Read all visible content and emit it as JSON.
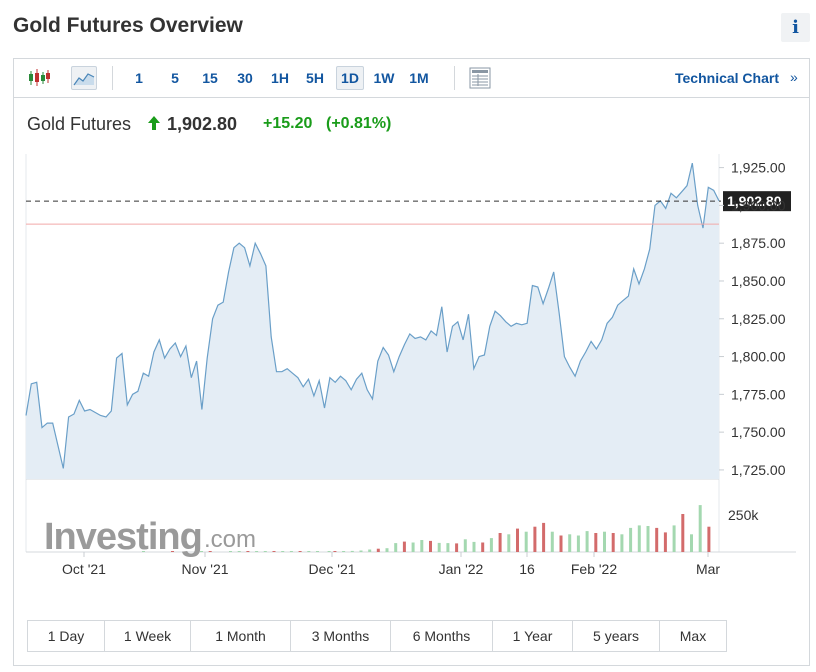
{
  "page": {
    "title": "Gold Futures Overview",
    "info_label": "i"
  },
  "toolbar": {
    "chart_types": [
      "candlestick-icon",
      "area-chart-icon"
    ],
    "intervals": [
      "1",
      "5",
      "15",
      "30",
      "1H",
      "5H",
      "1D",
      "1W",
      "1M"
    ],
    "active_interval": "1D",
    "table_icon": "table-icon",
    "technical_link": "Technical Chart",
    "technical_arrow": "»"
  },
  "quote": {
    "name": "Gold Futures",
    "price": "1,902.80",
    "change": "+15.20",
    "change_pct": "(+0.81%)",
    "direction": "up"
  },
  "chart_data": {
    "type": "area",
    "x_ticks": [
      "Oct '21",
      "Nov '21",
      "Dec '21",
      "Jan '22",
      "16",
      "Feb '22",
      "Mar"
    ],
    "y_ticks": [
      "1,925.00",
      "1,900.00",
      "1,875.00",
      "1,850.00",
      "1,825.00",
      "1,800.00",
      "1,775.00",
      "1,750.00",
      "1,725.00"
    ],
    "ylim": [
      1719,
      1934
    ],
    "last_price_label": "1,902.80",
    "last_price": 1902.8,
    "previous_close": 1887.6,
    "series": [
      {
        "values": [
          1761,
          1782,
          1783,
          1753,
          1756,
          1756,
          1741,
          1726,
          1760,
          1762,
          1771,
          1764,
          1765,
          1763,
          1761,
          1760,
          1764,
          1799,
          1802,
          1768,
          1775,
          1777,
          1789,
          1787,
          1803,
          1811,
          1799,
          1805,
          1809,
          1800,
          1807,
          1786,
          1797,
          1765,
          1799,
          1825,
          1834,
          1836,
          1856,
          1872,
          1875,
          1872,
          1860,
          1875,
          1868,
          1860,
          1813,
          1790,
          1790,
          1792,
          1789,
          1786,
          1780,
          1785,
          1774,
          1784,
          1766,
          1786,
          1783,
          1787,
          1784,
          1778,
          1785,
          1789,
          1778,
          1772,
          1797,
          1806,
          1801,
          1790,
          1800,
          1808,
          1815,
          1812,
          1813,
          1811,
          1817,
          1814,
          1833,
          1803,
          1820,
          1823,
          1811,
          1828,
          1792,
          1800,
          1801,
          1820,
          1830,
          1827,
          1823,
          1820,
          1822,
          1821,
          1822,
          1847,
          1846,
          1835,
          1845,
          1856,
          1829,
          1800,
          1793,
          1787,
          1797,
          1803,
          1810,
          1805,
          1811,
          1822,
          1826,
          1834,
          1837,
          1840,
          1858,
          1848,
          1858,
          1871,
          1900,
          1903,
          1898,
          1908,
          1905,
          1909,
          1913,
          1928,
          1900,
          1885,
          1912,
          1910,
          1903
        ]
      }
    ],
    "volume_ticks": [
      "250k"
    ],
    "volume_max": 300,
    "volume": [
      {
        "i": 40,
        "v": 3,
        "d": "up"
      },
      {
        "i": 50,
        "v": 2,
        "d": "down"
      },
      {
        "i": 60,
        "v": 3,
        "d": "up"
      },
      {
        "i": 63,
        "v": 3,
        "d": "down"
      },
      {
        "i": 70,
        "v": 3,
        "d": "up"
      },
      {
        "i": 73,
        "v": 4,
        "d": "up"
      },
      {
        "i": 76,
        "v": 3,
        "d": "down"
      },
      {
        "i": 79,
        "v": 4,
        "d": "up"
      },
      {
        "i": 82,
        "v": 3,
        "d": "up"
      },
      {
        "i": 85,
        "v": 4,
        "d": "down"
      },
      {
        "i": 88,
        "v": 5,
        "d": "up"
      },
      {
        "i": 91,
        "v": 4,
        "d": "up"
      },
      {
        "i": 94,
        "v": 6,
        "d": "down"
      },
      {
        "i": 97,
        "v": 5,
        "d": "up"
      },
      {
        "i": 100,
        "v": 7,
        "d": "up"
      },
      {
        "i": 104,
        "v": 4,
        "d": "up"
      },
      {
        "i": 106,
        "v": 8,
        "d": "down"
      },
      {
        "i": 109,
        "v": 6,
        "d": "up"
      },
      {
        "i": 112,
        "v": 9,
        "d": "up"
      },
      {
        "i": 115,
        "v": 12,
        "d": "up"
      },
      {
        "i": 118,
        "v": 20,
        "d": "up"
      },
      {
        "i": 121,
        "v": 26,
        "d": "down"
      },
      {
        "i": 124,
        "v": 30,
        "d": "up"
      },
      {
        "i": 127,
        "v": 70,
        "d": "up"
      },
      {
        "i": 130,
        "v": 82,
        "d": "down"
      },
      {
        "i": 133,
        "v": 75,
        "d": "up"
      },
      {
        "i": 136,
        "v": 95,
        "d": "up"
      },
      {
        "i": 139,
        "v": 88,
        "d": "down"
      },
      {
        "i": 142,
        "v": 72,
        "d": "up"
      },
      {
        "i": 145,
        "v": 70,
        "d": "up"
      },
      {
        "i": 148,
        "v": 68,
        "d": "down"
      },
      {
        "i": 151,
        "v": 100,
        "d": "up"
      },
      {
        "i": 154,
        "v": 80,
        "d": "up"
      },
      {
        "i": 157,
        "v": 75,
        "d": "down"
      },
      {
        "i": 160,
        "v": 110,
        "d": "up"
      },
      {
        "i": 163,
        "v": 150,
        "d": "down"
      },
      {
        "i": 166,
        "v": 140,
        "d": "up"
      },
      {
        "i": 169,
        "v": 185,
        "d": "down"
      },
      {
        "i": 172,
        "v": 160,
        "d": "up"
      },
      {
        "i": 175,
        "v": 200,
        "d": "down"
      },
      {
        "i": 178,
        "v": 230,
        "d": "down"
      },
      {
        "i": 181,
        "v": 160,
        "d": "up"
      },
      {
        "i": 184,
        "v": 130,
        "d": "down"
      },
      {
        "i": 187,
        "v": 140,
        "d": "up"
      },
      {
        "i": 190,
        "v": 130,
        "d": "up"
      },
      {
        "i": 193,
        "v": 165,
        "d": "up"
      },
      {
        "i": 196,
        "v": 150,
        "d": "down"
      },
      {
        "i": 199,
        "v": 160,
        "d": "up"
      },
      {
        "i": 202,
        "v": 150,
        "d": "down"
      },
      {
        "i": 205,
        "v": 140,
        "d": "up"
      },
      {
        "i": 208,
        "v": 190,
        "d": "up"
      },
      {
        "i": 211,
        "v": 210,
        "d": "up"
      },
      {
        "i": 214,
        "v": 205,
        "d": "up"
      },
      {
        "i": 217,
        "v": 190,
        "d": "down"
      },
      {
        "i": 220,
        "v": 155,
        "d": "down"
      },
      {
        "i": 223,
        "v": 210,
        "d": "up"
      },
      {
        "i": 226,
        "v": 300,
        "d": "down"
      },
      {
        "i": 229,
        "v": 140,
        "d": "up"
      },
      {
        "i": 232,
        "v": 370,
        "d": "up"
      },
      {
        "i": 235,
        "v": 200,
        "d": "down"
      }
    ],
    "watermark": "Investing",
    "watermark_suffix": ".com"
  },
  "ranges": [
    "1 Day",
    "1 Week",
    "1 Month",
    "3 Months",
    "6 Months",
    "1 Year",
    "5 years",
    "Max"
  ],
  "colors": {
    "line": "#6a9fc8",
    "fill": "#e4edf5",
    "up": "#a4d8b0",
    "down": "#d36b6b",
    "link": "#1256a0",
    "positive": "#1a9c1a",
    "prev_close_line": "#f2a9a9"
  }
}
